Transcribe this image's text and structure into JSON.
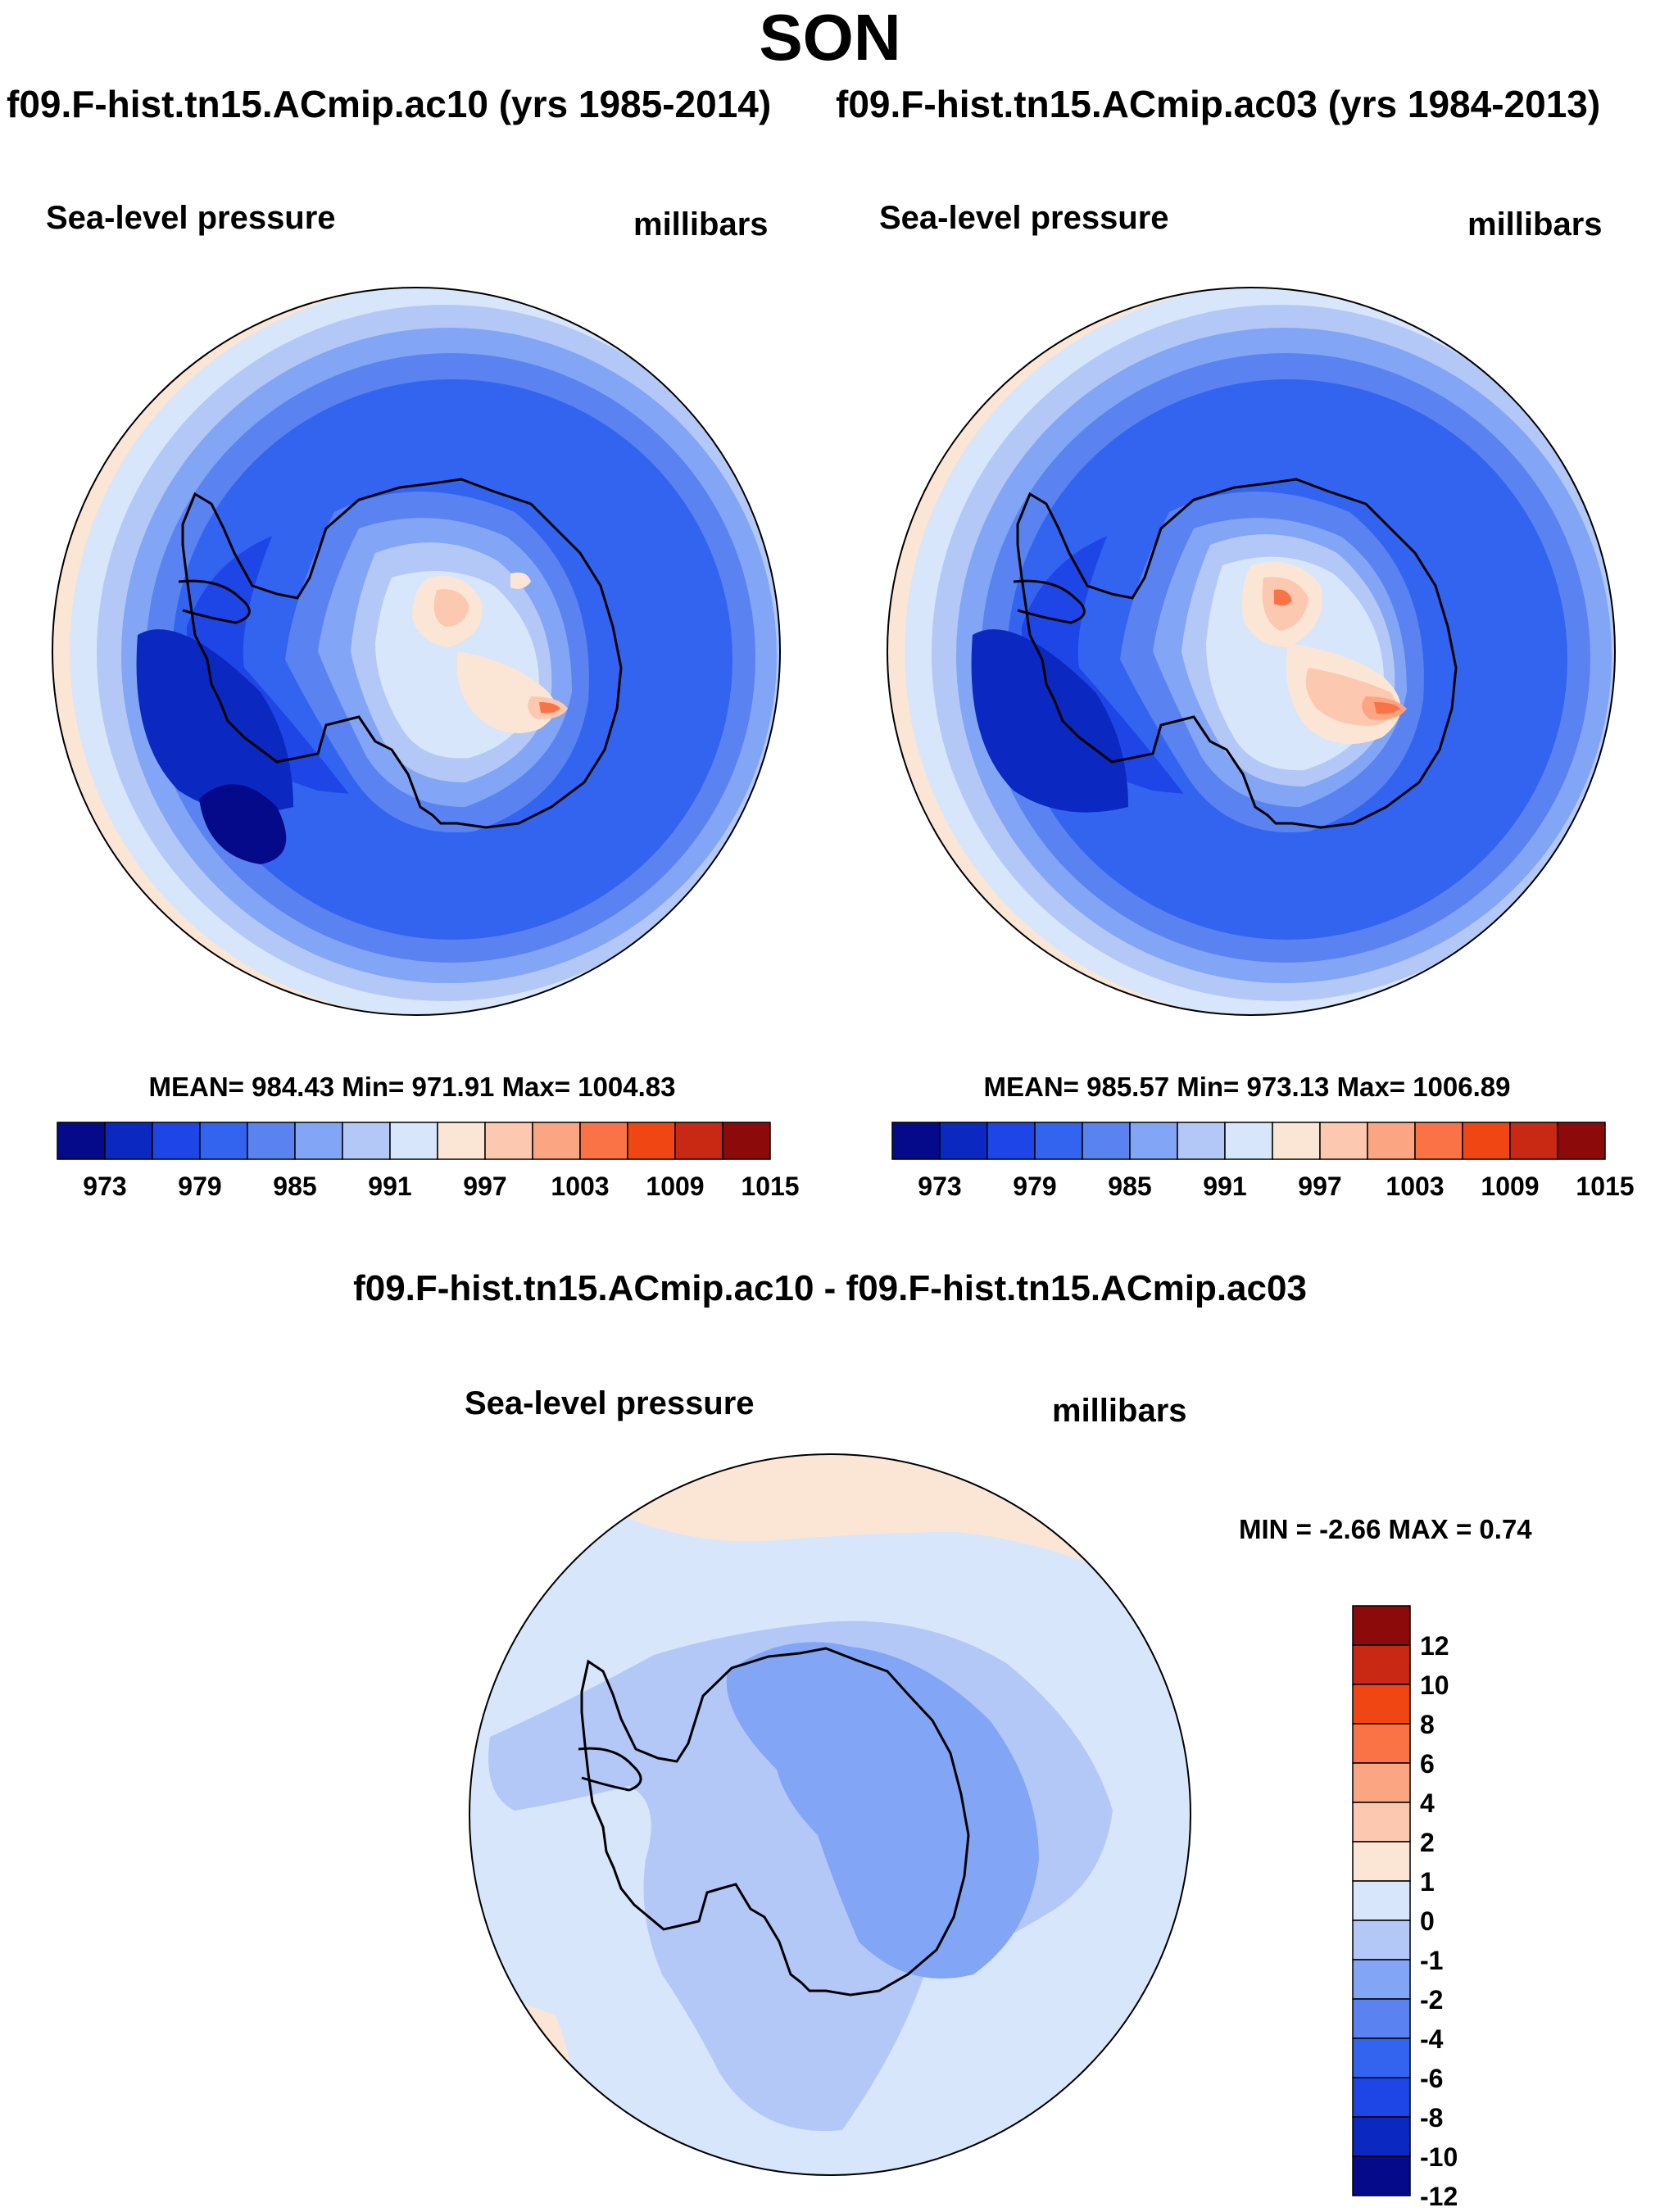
{
  "title": "SON",
  "panels": [
    {
      "case_title": "f09.F-hist.tn15.ACmip.ac10 (yrs 1985-2014)",
      "variable": "Sea-level pressure",
      "units": "millibars",
      "stats": "MEAN= 984.43  Min= 971.91  Max= 1004.83"
    },
    {
      "case_title": "f09.F-hist.tn15.ACmip.ac03 (yrs 1984-2013)",
      "variable": "Sea-level pressure",
      "units": "millibars",
      "stats": "MEAN= 985.57  Min= 973.13  Max= 1006.89"
    }
  ],
  "diff_panel": {
    "title": "f09.F-hist.tn15.ACmip.ac10 - f09.F-hist.tn15.ACmip.ac03",
    "variable": "Sea-level pressure",
    "units": "millibars",
    "stats": "MIN =  -2.66 MAX =   0.74"
  },
  "chart_data": [
    {
      "type": "heatmap",
      "projection": "south polar stereographic",
      "title": "f09.F-hist.tn15.ACmip.ac10 (yrs 1985-2014)",
      "field": "Sea-level pressure",
      "units": "millibars",
      "mean": 984.43,
      "min": 971.91,
      "max": 1004.83,
      "colorbar_ticks": [
        "973",
        "979",
        "985",
        "991",
        "997",
        "1003",
        "1009",
        "1015"
      ],
      "colorbar_colors": [
        "#050a8a",
        "#0b28c0",
        "#1e46e6",
        "#3264f0",
        "#5a82f0",
        "#82a5f5",
        "#b4c8f8",
        "#d7e6fa",
        "#fbe6d5",
        "#fcc8af",
        "#fca582",
        "#fa7346",
        "#f04614",
        "#c82814",
        "#8c0a0a"
      ]
    },
    {
      "type": "heatmap",
      "projection": "south polar stereographic",
      "title": "f09.F-hist.tn15.ACmip.ac03 (yrs 1984-2013)",
      "field": "Sea-level pressure",
      "units": "millibars",
      "mean": 985.57,
      "min": 973.13,
      "max": 1006.89,
      "colorbar_ticks": [
        "973",
        "979",
        "985",
        "991",
        "997",
        "1003",
        "1009",
        "1015"
      ],
      "colorbar_colors": [
        "#050a8a",
        "#0b28c0",
        "#1e46e6",
        "#3264f0",
        "#5a82f0",
        "#82a5f5",
        "#b4c8f8",
        "#d7e6fa",
        "#fbe6d5",
        "#fcc8af",
        "#fca582",
        "#fa7346",
        "#f04614",
        "#c82814",
        "#8c0a0a"
      ]
    },
    {
      "type": "heatmap",
      "projection": "south polar stereographic",
      "title": "f09.F-hist.tn15.ACmip.ac10 - f09.F-hist.tn15.ACmip.ac03",
      "field": "Sea-level pressure",
      "units": "millibars",
      "min": -2.66,
      "max": 0.74,
      "colorbar_ticks": [
        "12",
        "10",
        "8",
        "6",
        "4",
        "2",
        "1",
        "0",
        "-1",
        "-2",
        "-4",
        "-6",
        "-8",
        "-10",
        "-12"
      ],
      "colorbar_colors": [
        "#8c0a0a",
        "#c82814",
        "#f04614",
        "#fa7346",
        "#fca582",
        "#fcc8af",
        "#fbe6d5",
        "#d7e6fa",
        "#b4c8f8",
        "#82a5f5",
        "#5a82f0",
        "#3264f0",
        "#1e46e6",
        "#0b28c0",
        "#050a8a"
      ]
    }
  ]
}
